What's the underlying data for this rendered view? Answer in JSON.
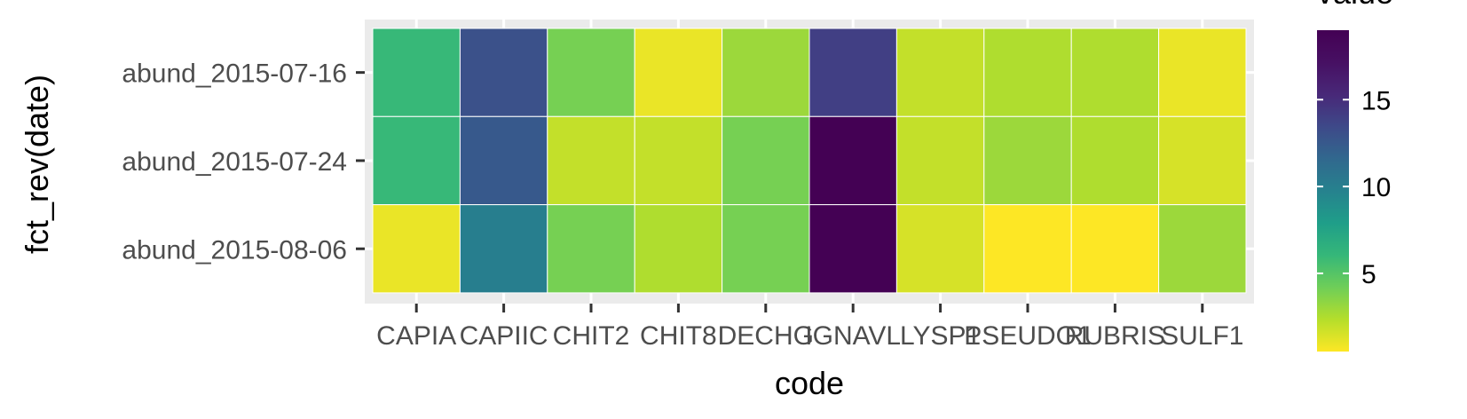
{
  "chart_data": {
    "type": "heatmap",
    "title": "",
    "xlabel": "code",
    "ylabel": "fct_rev(date)",
    "categories": [
      "CAPIA",
      "CAPIIC",
      "CHIT2",
      "CHIT8",
      "DECHG",
      "IGNAVL",
      "LYSP1",
      "PSEUDO1",
      "RUBRIS",
      "SULF1"
    ],
    "rows": [
      "abund_2015-07-16",
      "abund_2015-07-24",
      "abund_2015-08-06"
    ],
    "values": [
      [
        6,
        13,
        4,
        1,
        3,
        14,
        2,
        2.5,
        2.5,
        1
      ],
      [
        6,
        12.5,
        2,
        2,
        4,
        19,
        2,
        3,
        2.5,
        1.5
      ],
      [
        1,
        10,
        4,
        2.5,
        4,
        19,
        1.5,
        0.5,
        0.5,
        3
      ]
    ],
    "colorbar": {
      "title": "value",
      "min": 0.5,
      "max": 19,
      "ticks": [
        5,
        10,
        15
      ]
    },
    "grid": true,
    "legend_position": "right"
  }
}
